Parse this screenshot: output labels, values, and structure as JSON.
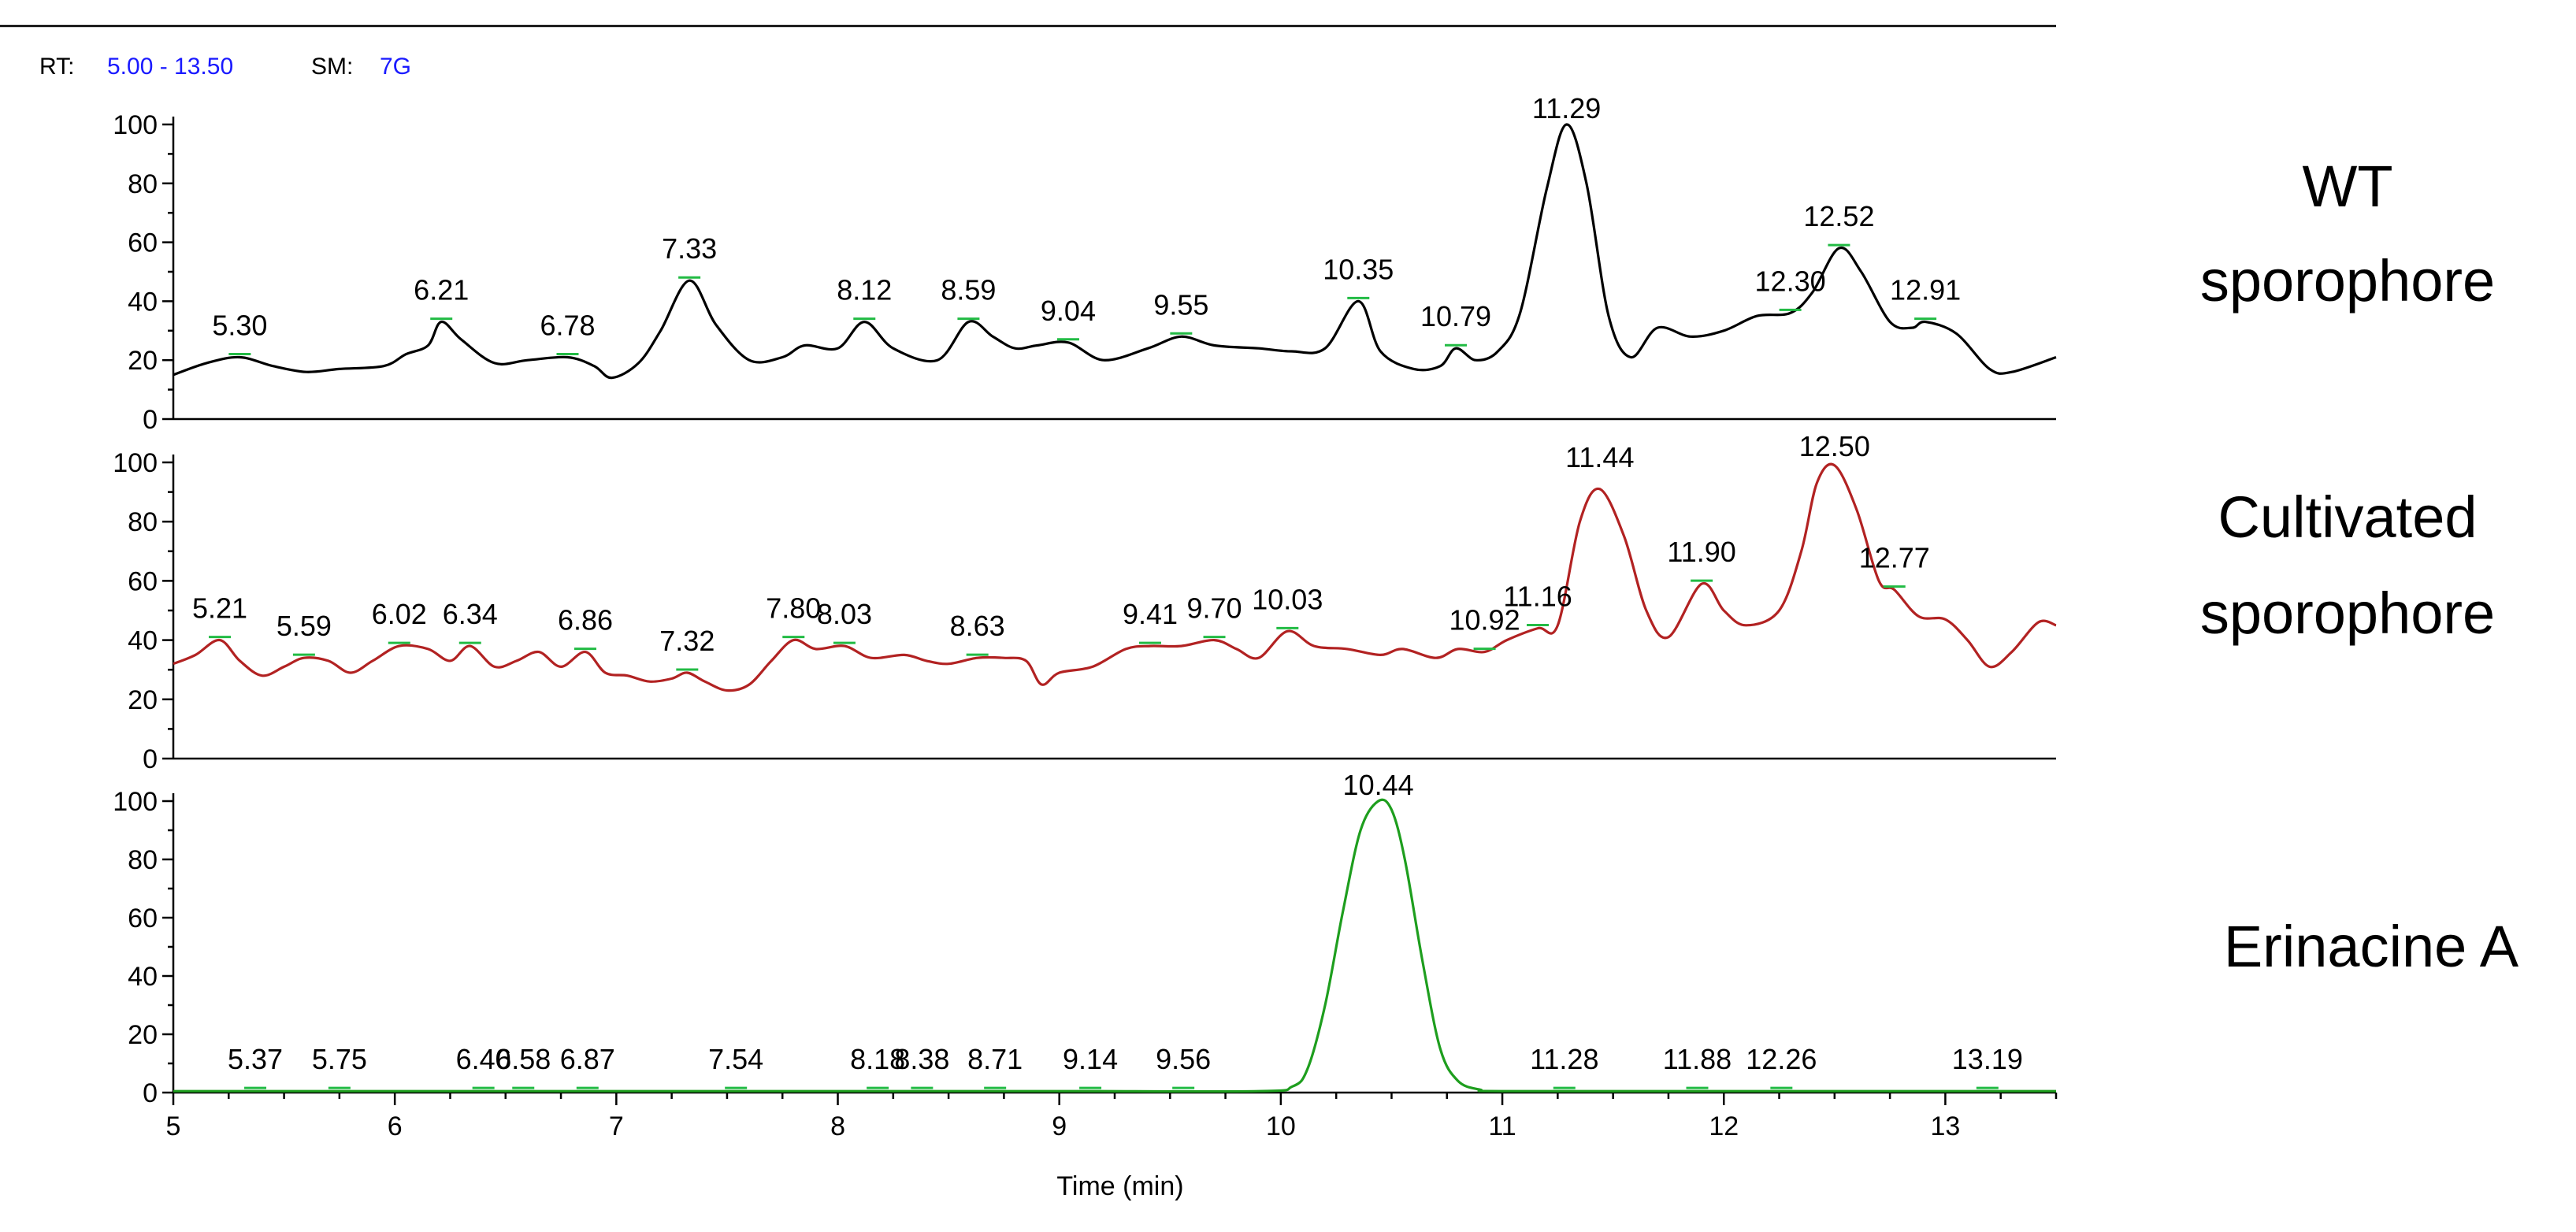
{
  "header": {
    "rt_key": "RT:",
    "rt_value": "5.00 - 13.50",
    "sm_key": "SM:",
    "sm_value": "7G"
  },
  "chart_data": {
    "type": "line",
    "xlabel": "Time (min)",
    "xlim": [
      5.0,
      13.5
    ],
    "x_ticks": [
      5,
      6,
      7,
      8,
      9,
      10,
      11,
      12,
      13
    ],
    "ylim": [
      0,
      100
    ],
    "y_ticks": [
      0,
      20,
      40,
      60,
      80,
      100
    ],
    "panels": [
      {
        "label_lines": [
          "WT",
          "sporophore"
        ],
        "color": "#000000",
        "points": [
          [
            5.0,
            15
          ],
          [
            5.15,
            19
          ],
          [
            5.3,
            21
          ],
          [
            5.45,
            18
          ],
          [
            5.6,
            16
          ],
          [
            5.75,
            17
          ],
          [
            5.95,
            18
          ],
          [
            6.05,
            22
          ],
          [
            6.15,
            25
          ],
          [
            6.21,
            33
          ],
          [
            6.3,
            27
          ],
          [
            6.45,
            19
          ],
          [
            6.6,
            20
          ],
          [
            6.78,
            21
          ],
          [
            6.9,
            18
          ],
          [
            6.98,
            14
          ],
          [
            7.1,
            19
          ],
          [
            7.2,
            30
          ],
          [
            7.33,
            47
          ],
          [
            7.45,
            32
          ],
          [
            7.6,
            20
          ],
          [
            7.75,
            21
          ],
          [
            7.85,
            25
          ],
          [
            8.0,
            24
          ],
          [
            8.12,
            33
          ],
          [
            8.25,
            24
          ],
          [
            8.45,
            20
          ],
          [
            8.59,
            33
          ],
          [
            8.7,
            28
          ],
          [
            8.8,
            24
          ],
          [
            8.9,
            25
          ],
          [
            9.04,
            26
          ],
          [
            9.2,
            20
          ],
          [
            9.4,
            24
          ],
          [
            9.55,
            28
          ],
          [
            9.7,
            25
          ],
          [
            9.9,
            24
          ],
          [
            10.05,
            23
          ],
          [
            10.2,
            24
          ],
          [
            10.35,
            40
          ],
          [
            10.45,
            23
          ],
          [
            10.6,
            17
          ],
          [
            10.72,
            18
          ],
          [
            10.79,
            24
          ],
          [
            10.88,
            20
          ],
          [
            10.98,
            23
          ],
          [
            11.08,
            36
          ],
          [
            11.2,
            78
          ],
          [
            11.29,
            100
          ],
          [
            11.38,
            80
          ],
          [
            11.48,
            35
          ],
          [
            11.58,
            21
          ],
          [
            11.7,
            31
          ],
          [
            11.85,
            28
          ],
          [
            12.0,
            30
          ],
          [
            12.15,
            35
          ],
          [
            12.3,
            36
          ],
          [
            12.4,
            43
          ],
          [
            12.52,
            58
          ],
          [
            12.62,
            50
          ],
          [
            12.75,
            33
          ],
          [
            12.85,
            31
          ],
          [
            12.91,
            33
          ],
          [
            13.05,
            29
          ],
          [
            13.2,
            17
          ],
          [
            13.3,
            16
          ],
          [
            13.5,
            21
          ]
        ],
        "peaks": [
          {
            "x": 5.3,
            "label": "5.30"
          },
          {
            "x": 6.21,
            "label": "6.21"
          },
          {
            "x": 6.78,
            "label": "6.78"
          },
          {
            "x": 7.33,
            "label": "7.33"
          },
          {
            "x": 8.12,
            "label": "8.12"
          },
          {
            "x": 8.59,
            "label": "8.59"
          },
          {
            "x": 9.04,
            "label": "9.04"
          },
          {
            "x": 9.55,
            "label": "9.55"
          },
          {
            "x": 10.35,
            "label": "10.35"
          },
          {
            "x": 10.79,
            "label": "10.79"
          },
          {
            "x": 11.29,
            "label": "11.29"
          },
          {
            "x": 12.3,
            "label": "12.30"
          },
          {
            "x": 12.52,
            "label": "12.52"
          },
          {
            "x": 12.91,
            "label": "12.91"
          }
        ]
      },
      {
        "label_lines": [
          "Cultivated",
          "sporophore"
        ],
        "color": "#b22222",
        "points": [
          [
            5.0,
            32
          ],
          [
            5.1,
            35
          ],
          [
            5.21,
            40
          ],
          [
            5.3,
            33
          ],
          [
            5.4,
            28
          ],
          [
            5.5,
            31
          ],
          [
            5.59,
            34
          ],
          [
            5.7,
            33
          ],
          [
            5.8,
            29
          ],
          [
            5.9,
            33
          ],
          [
            6.02,
            38
          ],
          [
            6.15,
            37
          ],
          [
            6.25,
            33
          ],
          [
            6.34,
            38
          ],
          [
            6.45,
            31
          ],
          [
            6.55,
            33
          ],
          [
            6.65,
            36
          ],
          [
            6.75,
            31
          ],
          [
            6.86,
            36
          ],
          [
            6.95,
            29
          ],
          [
            7.05,
            28
          ],
          [
            7.15,
            26
          ],
          [
            7.25,
            27
          ],
          [
            7.32,
            29
          ],
          [
            7.4,
            26
          ],
          [
            7.5,
            23
          ],
          [
            7.6,
            25
          ],
          [
            7.7,
            33
          ],
          [
            7.8,
            40
          ],
          [
            7.9,
            37
          ],
          [
            8.03,
            38
          ],
          [
            8.15,
            34
          ],
          [
            8.3,
            35
          ],
          [
            8.4,
            33
          ],
          [
            8.5,
            32
          ],
          [
            8.63,
            34
          ],
          [
            8.75,
            34
          ],
          [
            8.85,
            33
          ],
          [
            8.92,
            25
          ],
          [
            9.0,
            29
          ],
          [
            9.15,
            31
          ],
          [
            9.3,
            37
          ],
          [
            9.41,
            38
          ],
          [
            9.55,
            38
          ],
          [
            9.7,
            40
          ],
          [
            9.8,
            37
          ],
          [
            9.9,
            34
          ],
          [
            10.03,
            43
          ],
          [
            10.15,
            38
          ],
          [
            10.3,
            37
          ],
          [
            10.45,
            35
          ],
          [
            10.55,
            37
          ],
          [
            10.7,
            34
          ],
          [
            10.8,
            37
          ],
          [
            10.92,
            36
          ],
          [
            11.02,
            40
          ],
          [
            11.16,
            44
          ],
          [
            11.25,
            45
          ],
          [
            11.35,
            80
          ],
          [
            11.44,
            91
          ],
          [
            11.55,
            75
          ],
          [
            11.65,
            50
          ],
          [
            11.75,
            41
          ],
          [
            11.9,
            59
          ],
          [
            12.0,
            50
          ],
          [
            12.1,
            45
          ],
          [
            12.25,
            50
          ],
          [
            12.35,
            70
          ],
          [
            12.42,
            93
          ],
          [
            12.5,
            99
          ],
          [
            12.6,
            84
          ],
          [
            12.7,
            60
          ],
          [
            12.77,
            57
          ],
          [
            12.88,
            48
          ],
          [
            13.0,
            47
          ],
          [
            13.1,
            40
          ],
          [
            13.2,
            31
          ],
          [
            13.3,
            36
          ],
          [
            13.42,
            46
          ],
          [
            13.5,
            45
          ]
        ],
        "peaks": [
          {
            "x": 5.21,
            "label": "5.21"
          },
          {
            "x": 5.59,
            "label": "5.59"
          },
          {
            "x": 6.02,
            "label": "6.02"
          },
          {
            "x": 6.34,
            "label": "6.34"
          },
          {
            "x": 6.86,
            "label": "6.86"
          },
          {
            "x": 7.32,
            "label": "7.32"
          },
          {
            "x": 7.8,
            "label": "7.80"
          },
          {
            "x": 8.03,
            "label": "8.03"
          },
          {
            "x": 8.63,
            "label": "8.63"
          },
          {
            "x": 9.41,
            "label": "9.41"
          },
          {
            "x": 9.7,
            "label": "9.70"
          },
          {
            "x": 10.03,
            "label": "10.03"
          },
          {
            "x": 10.92,
            "label": "10.92"
          },
          {
            "x": 11.16,
            "label": "11.16"
          },
          {
            "x": 11.44,
            "label": "11.44"
          },
          {
            "x": 11.9,
            "label": "11.90"
          },
          {
            "x": 12.5,
            "label": "12.50"
          },
          {
            "x": 12.77,
            "label": "12.77"
          }
        ]
      },
      {
        "label_lines": [
          "Erinacine A"
        ],
        "color": "#1e9e1e",
        "points": [
          [
            5.0,
            0.5
          ],
          [
            6.0,
            0.5
          ],
          [
            7.0,
            0.5
          ],
          [
            8.0,
            0.5
          ],
          [
            9.0,
            0.5
          ],
          [
            9.9,
            0.5
          ],
          [
            10.05,
            2
          ],
          [
            10.12,
            8
          ],
          [
            10.2,
            30
          ],
          [
            10.28,
            62
          ],
          [
            10.36,
            90
          ],
          [
            10.44,
            100
          ],
          [
            10.5,
            97
          ],
          [
            10.56,
            80
          ],
          [
            10.64,
            45
          ],
          [
            10.72,
            15
          ],
          [
            10.8,
            4
          ],
          [
            10.9,
            1
          ],
          [
            11.0,
            0.5
          ],
          [
            12.0,
            0.5
          ],
          [
            13.0,
            0.5
          ],
          [
            13.5,
            0.5
          ]
        ],
        "peaks": [
          {
            "x": 5.37,
            "label": "5.37"
          },
          {
            "x": 5.75,
            "label": "5.75"
          },
          {
            "x": 6.4,
            "label": "6.40"
          },
          {
            "x": 6.58,
            "label": "6.58"
          },
          {
            "x": 6.87,
            "label": "6.87"
          },
          {
            "x": 7.54,
            "label": "7.54"
          },
          {
            "x": 8.18,
            "label": "8.18"
          },
          {
            "x": 8.38,
            "label": "8.38"
          },
          {
            "x": 8.71,
            "label": "8.71"
          },
          {
            "x": 9.14,
            "label": "9.14"
          },
          {
            "x": 9.56,
            "label": "9.56"
          },
          {
            "x": 10.44,
            "label": "10.44"
          },
          {
            "x": 11.28,
            "label": "11.28"
          },
          {
            "x": 11.88,
            "label": "11.88"
          },
          {
            "x": 12.26,
            "label": "12.26"
          },
          {
            "x": 13.19,
            "label": "13.19"
          }
        ]
      }
    ]
  }
}
